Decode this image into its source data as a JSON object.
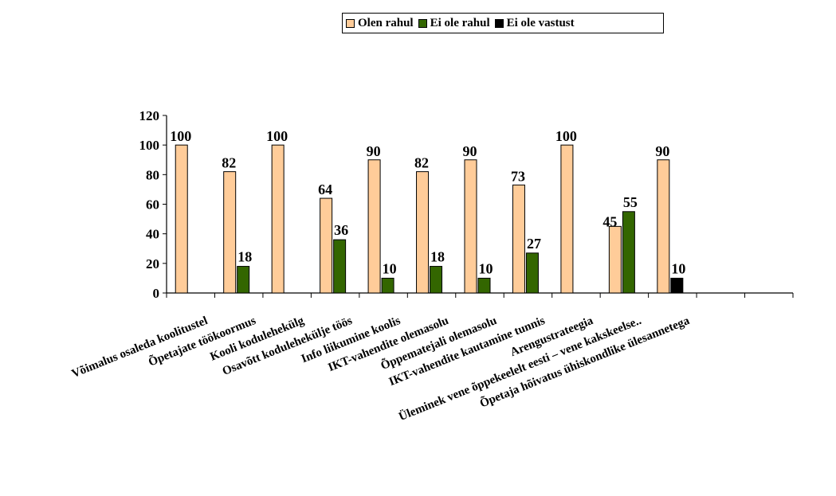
{
  "chart_data": {
    "type": "bar",
    "categories": [
      "Võimalus osaleda koolitustel",
      "Õpetajate töökoormus",
      "Kooli kodulehekülg",
      "Osavõtt kodulehekülje töös",
      "Info liikumine koolis",
      "IKT-vahendite olemasolu",
      "Õppematejali olemasolu",
      "IKT-vahendite kautamine tunnis",
      "Arengustrateegia",
      "Üleminek vene õppekeelelt eesti – vene kakskeelse..",
      "Õpetaja hõivatus ühiskondlike ülesannetega",
      "",
      ""
    ],
    "series": [
      {
        "name": "Olen rahul",
        "color": "#FFCC99",
        "values": [
          100,
          82,
          100,
          64,
          90,
          82,
          90,
          73,
          100,
          45,
          90,
          null,
          null
        ]
      },
      {
        "name": "Ei ole rahul",
        "color": "#336600",
        "values": [
          null,
          18,
          null,
          36,
          10,
          18,
          10,
          27,
          null,
          55,
          null,
          null,
          null
        ]
      },
      {
        "name": "Ei ole vastust",
        "color": "#000000",
        "values": [
          null,
          null,
          null,
          null,
          null,
          null,
          null,
          null,
          null,
          null,
          10,
          null,
          null
        ]
      }
    ],
    "y_ticks": [
      "0",
      "20",
      "40",
      "60",
      "80",
      "100",
      "120"
    ],
    "ylim": [
      0,
      120
    ],
    "grid": false,
    "legend_position": "top-right"
  }
}
